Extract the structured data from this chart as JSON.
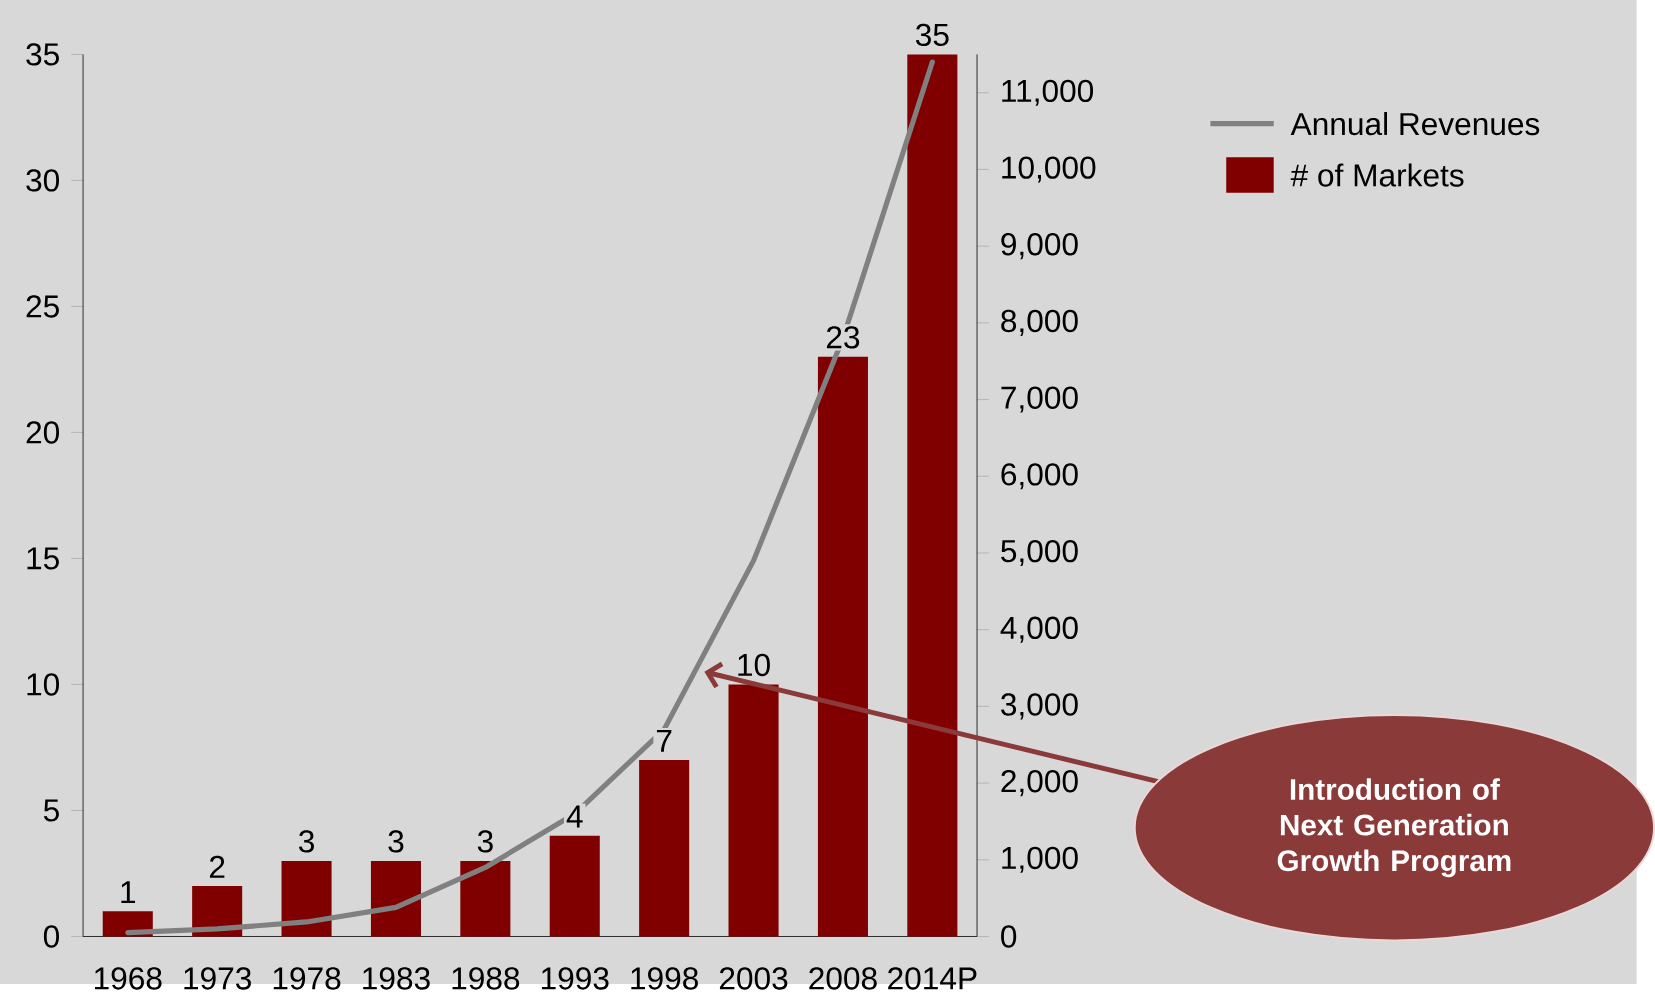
{
  "chart_data": {
    "type": "bar",
    "categories": [
      "1968",
      "1973",
      "1978",
      "1983",
      "1988",
      "1993",
      "1998",
      "2003",
      "2008",
      "2014P"
    ],
    "series": [
      {
        "name": "Annual Revenues",
        "type": "line",
        "axis": "y2",
        "color": "#808080",
        "values": [
          50,
          100,
          190,
          380,
          900,
          1600,
          2700,
          4900,
          7800,
          11400
        ]
      },
      {
        "name": "# of Markets",
        "color": "#800000",
        "data_labels": true,
        "values": [
          1,
          2,
          3,
          3,
          3,
          4,
          7,
          10,
          23,
          35
        ]
      }
    ],
    "ylim": [
      0,
      35
    ],
    "yticks": [
      0,
      5,
      10,
      15,
      20,
      25,
      30,
      35
    ],
    "y2lim": [
      0,
      11500
    ],
    "y2ticks": [
      0,
      {
        "value": 1000,
        "label": "1,000"
      },
      {
        "value": 2000,
        "label": "2,000"
      },
      {
        "value": 3000,
        "label": "3,000"
      },
      {
        "value": 4000,
        "label": "4,000"
      },
      {
        "value": 5000,
        "label": "5,000"
      },
      {
        "value": 6000,
        "label": "6,000"
      },
      {
        "value": 7000,
        "label": "7,000"
      },
      {
        "value": 8000,
        "label": "8,000"
      },
      {
        "value": 9000,
        "label": "9,000"
      },
      {
        "value": 10000,
        "label": "10,000"
      },
      {
        "value": 11000,
        "label": "11,000"
      }
    ],
    "legend": "right",
    "grid": false,
    "marker": "none",
    "annotations": [
      "Introduction of Next Generation Growth Program"
    ]
  }
}
